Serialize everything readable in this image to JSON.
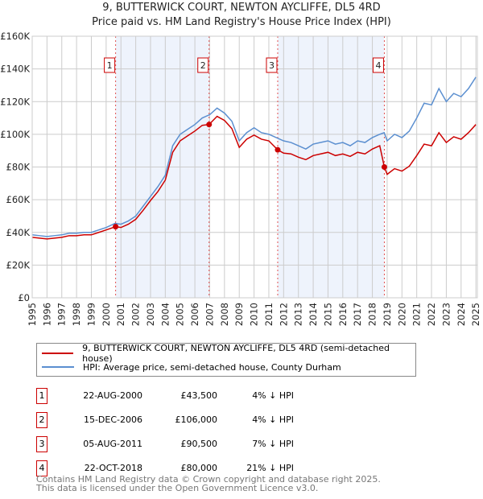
{
  "header": {
    "title": "9, BUTTERWICK COURT, NEWTON AYCLIFFE, DL5 4RD",
    "subtitle": "Price paid vs. HM Land Registry's House Price Index (HPI)"
  },
  "chart_data": {
    "type": "line",
    "title": "9, BUTTERWICK COURT, NEWTON AYCLIFFE, DL5 4RD",
    "subtitle": "Price paid vs. HM Land Registry's House Price Index (HPI)",
    "xlim": [
      1995,
      2025.1
    ],
    "ylim": [
      0,
      160000
    ],
    "yticks": [
      0,
      20000,
      40000,
      60000,
      80000,
      100000,
      120000,
      140000,
      160000
    ],
    "ytick_labels": [
      "£0",
      "£20K",
      "£40K",
      "£60K",
      "£80K",
      "£100K",
      "£120K",
      "£140K",
      "£160K"
    ],
    "xticks": [
      "1995",
      "1996",
      "1997",
      "1998",
      "1999",
      "2000",
      "2001",
      "2002",
      "2003",
      "2004",
      "2005",
      "2006",
      "2007",
      "2008",
      "2009",
      "2010",
      "2011",
      "2012",
      "2013",
      "2014",
      "2015",
      "2016",
      "2017",
      "2018",
      "2019",
      "2020",
      "2021",
      "2022",
      "2023",
      "2024",
      "2025"
    ],
    "grid": true,
    "colors": {
      "property": "#cc0000",
      "hpi": "#5b8fd0",
      "shade": "#eef3fc"
    },
    "series": [
      {
        "name": "HPI: Average price, semi-detached house, County Durham",
        "x": [
          1995,
          1995.5,
          1996,
          1996.5,
          1997,
          1997.5,
          1998,
          1998.5,
          1999,
          1999.5,
          2000,
          2000.6,
          2001,
          2001.5,
          2002,
          2002.5,
          2003,
          2003.5,
          2004,
          2004.5,
          2005,
          2005.5,
          2006,
          2006.5,
          2007,
          2007.5,
          2008,
          2008.5,
          2009,
          2009.5,
          2010,
          2010.5,
          2011,
          2011.5,
          2012,
          2012.5,
          2013,
          2013.5,
          2014,
          2014.5,
          2015,
          2015.5,
          2016,
          2016.5,
          2017,
          2017.5,
          2018,
          2018.5,
          2018.8,
          2019,
          2019.5,
          2020,
          2020.5,
          2021,
          2021.5,
          2022,
          2022.5,
          2023,
          2023.5,
          2024,
          2024.5,
          2025
        ],
        "values": [
          38500,
          38000,
          37500,
          38000,
          38500,
          39500,
          39500,
          40000,
          40000,
          41500,
          43000,
          45500,
          45000,
          47000,
          50000,
          56000,
          62000,
          68000,
          75000,
          93000,
          100000,
          103000,
          106000,
          110000,
          112000,
          116000,
          113000,
          108000,
          96000,
          101000,
          104000,
          101000,
          100000,
          98000,
          96000,
          95000,
          93000,
          91000,
          94000,
          95000,
          96000,
          94000,
          95000,
          93000,
          96000,
          95000,
          98000,
          100000,
          101000,
          96000,
          100000,
          98000,
          102000,
          110000,
          119000,
          118000,
          128000,
          120000,
          125000,
          123000,
          128000,
          135000
        ]
      },
      {
        "name": "9, BUTTERWICK COURT, NEWTON AYCLIFFE, DL5 4RD (semi-detached house)",
        "x": [
          1995,
          1995.5,
          1996,
          1996.5,
          1997,
          1997.5,
          1998,
          1998.5,
          1999,
          1999.5,
          2000,
          2000.64,
          2001,
          2001.5,
          2002,
          2002.5,
          2003,
          2003.5,
          2004,
          2004.5,
          2005,
          2005.5,
          2006,
          2006.5,
          2006.96,
          2007.5,
          2008,
          2008.5,
          2009,
          2009.5,
          2010,
          2010.5,
          2011,
          2011.6,
          2012,
          2012.5,
          2013,
          2013.5,
          2014,
          2014.5,
          2015,
          2015.5,
          2016,
          2016.5,
          2017,
          2017.5,
          2018,
          2018.5,
          2018.81,
          2019,
          2019.5,
          2020,
          2020.5,
          2021,
          2021.5,
          2022,
          2022.5,
          2023,
          2023.5,
          2024,
          2024.5,
          2025
        ],
        "values": [
          37000,
          36500,
          36000,
          36500,
          37000,
          38000,
          38000,
          38500,
          38500,
          40000,
          41500,
          43500,
          43000,
          45000,
          48000,
          53500,
          59500,
          65000,
          72000,
          89000,
          96000,
          99000,
          102000,
          105500,
          106000,
          111000,
          108500,
          103500,
          92000,
          97000,
          99500,
          97000,
          96000,
          90500,
          88500,
          88000,
          86000,
          84500,
          87000,
          88000,
          89000,
          87000,
          88000,
          86500,
          89000,
          88000,
          91000,
          93000,
          80000,
          75500,
          79000,
          77500,
          80500,
          87000,
          94000,
          93000,
          101000,
          95000,
          98500,
          97000,
          101000,
          106000
        ]
      }
    ],
    "sales": [
      {
        "n": "1",
        "x": 2000.64,
        "y": 43500
      },
      {
        "n": "2",
        "x": 2006.96,
        "y": 106000
      },
      {
        "n": "3",
        "x": 2011.6,
        "y": 90500
      },
      {
        "n": "4",
        "x": 2018.81,
        "y": 80000
      }
    ]
  },
  "legend": {
    "property": "9, BUTTERWICK COURT, NEWTON AYCLIFFE, DL5 4RD (semi-detached house)",
    "hpi": "HPI: Average price, semi-detached house, County Durham"
  },
  "transactions": [
    {
      "n": "1",
      "date": "22-AUG-2000",
      "price": "£43,500",
      "hpi": "4% ↓ HPI"
    },
    {
      "n": "2",
      "date": "15-DEC-2006",
      "price": "£106,000",
      "hpi": "4% ↓ HPI"
    },
    {
      "n": "3",
      "date": "05-AUG-2011",
      "price": "£90,500",
      "hpi": "7% ↓ HPI"
    },
    {
      "n": "4",
      "date": "22-OCT-2018",
      "price": "£80,000",
      "hpi": "21% ↓ HPI"
    }
  ],
  "footer": {
    "line1": "Contains HM Land Registry data © Crown copyright and database right 2025.",
    "line2": "This data is licensed under the Open Government Licence v3.0."
  }
}
